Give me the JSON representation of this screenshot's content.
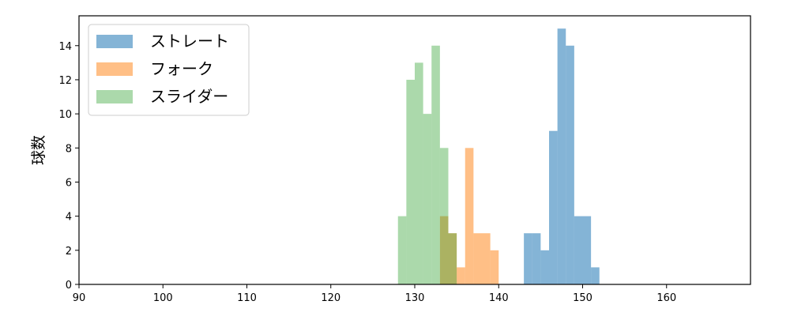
{
  "chart_data": {
    "type": "histogram",
    "xlim": [
      90,
      170
    ],
    "ylim": [
      0,
      15.75
    ],
    "xticks": [
      90,
      100,
      110,
      120,
      130,
      140,
      150,
      160
    ],
    "yticks": [
      0,
      2,
      4,
      6,
      8,
      10,
      12,
      14
    ],
    "xlabel": "",
    "ylabel": "球数",
    "legend_position": "top-left",
    "series": [
      {
        "name": "ストレート",
        "color": "#1f77b4",
        "alpha": 0.55,
        "bins": [
          {
            "x0": 143,
            "x1": 144,
            "count": 3
          },
          {
            "x0": 144,
            "x1": 145,
            "count": 3
          },
          {
            "x0": 145,
            "x1": 146,
            "count": 2
          },
          {
            "x0": 146,
            "x1": 147,
            "count": 9
          },
          {
            "x0": 147,
            "x1": 148,
            "count": 15
          },
          {
            "x0": 148,
            "x1": 149,
            "count": 14
          },
          {
            "x0": 149,
            "x1": 150,
            "count": 4
          },
          {
            "x0": 150,
            "x1": 151,
            "count": 4
          },
          {
            "x0": 151,
            "x1": 152,
            "count": 1
          }
        ]
      },
      {
        "name": "フォーク",
        "color": "#ff7f0e",
        "alpha": 0.5,
        "bins": [
          {
            "x0": 133,
            "x1": 134,
            "count": 4
          },
          {
            "x0": 134,
            "x1": 135,
            "count": 3
          },
          {
            "x0": 135,
            "x1": 136,
            "count": 1
          },
          {
            "x0": 136,
            "x1": 137,
            "count": 8
          },
          {
            "x0": 137,
            "x1": 138,
            "count": 3
          },
          {
            "x0": 138,
            "x1": 139,
            "count": 3
          },
          {
            "x0": 139,
            "x1": 140,
            "count": 2
          }
        ]
      },
      {
        "name": "スライダー",
        "color": "#2ca02c",
        "alpha": 0.4,
        "bins": [
          {
            "x0": 128,
            "x1": 129,
            "count": 4
          },
          {
            "x0": 129,
            "x1": 130,
            "count": 12
          },
          {
            "x0": 130,
            "x1": 131,
            "count": 13
          },
          {
            "x0": 131,
            "x1": 132,
            "count": 10
          },
          {
            "x0": 132,
            "x1": 133,
            "count": 14
          },
          {
            "x0": 133,
            "x1": 134,
            "count": 8
          },
          {
            "x0": 134,
            "x1": 135,
            "count": 3
          }
        ]
      }
    ]
  }
}
